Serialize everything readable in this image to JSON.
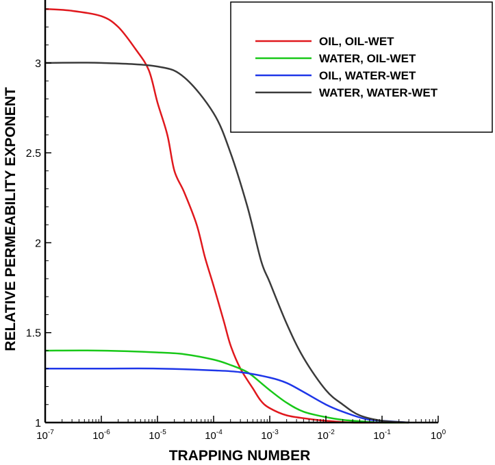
{
  "chart_data": {
    "type": "line",
    "title": "",
    "xlabel": "TRAPPING NUMBER",
    "ylabel": "RELATIVE PERMEABILITY EXPONENT",
    "x_scale": "log",
    "xlim": [
      1e-07,
      1
    ],
    "ylim": [
      1,
      3.35
    ],
    "x_ticks": [
      {
        "base": "10",
        "exp": "-7",
        "value": 1e-07
      },
      {
        "base": "10",
        "exp": "-6",
        "value": 1e-06
      },
      {
        "base": "10",
        "exp": "-5",
        "value": 1e-05
      },
      {
        "base": "10",
        "exp": "-4",
        "value": 0.0001
      },
      {
        "base": "10",
        "exp": "-3",
        "value": 0.001
      },
      {
        "base": "10",
        "exp": "-2",
        "value": 0.01
      },
      {
        "base": "10",
        "exp": "-1",
        "value": 0.1
      },
      {
        "base": "10",
        "exp": "0",
        "value": 1
      }
    ],
    "y_ticks": [
      {
        "label": "1",
        "value": 1
      },
      {
        "label": "1.5",
        "value": 1.5
      },
      {
        "label": "2",
        "value": 2
      },
      {
        "label": "2.5",
        "value": 2.5
      },
      {
        "label": "3",
        "value": 3
      }
    ],
    "grid": false,
    "legend_position": "top-right",
    "series": [
      {
        "name": "OIL, OIL-WET",
        "color": "#e0181d",
        "x": [
          1e-07,
          3e-07,
          1e-06,
          2e-06,
          4e-06,
          7e-06,
          1e-05,
          1.5e-05,
          2e-05,
          3e-05,
          5e-05,
          7e-05,
          0.0001,
          0.00015,
          0.0002,
          0.0003,
          0.0005,
          0.0007,
          0.001,
          0.002,
          0.005,
          0.01,
          0.03,
          0.1,
          0.3
        ],
        "y": [
          3.3,
          3.29,
          3.26,
          3.2,
          3.08,
          2.96,
          2.78,
          2.6,
          2.4,
          2.28,
          2.1,
          1.92,
          1.76,
          1.57,
          1.43,
          1.3,
          1.19,
          1.12,
          1.08,
          1.04,
          1.02,
          1.01,
          1.0,
          1.0,
          1.0
        ]
      },
      {
        "name": "WATER, OIL-WET",
        "color": "#18c818",
        "x": [
          1e-07,
          1e-06,
          1e-05,
          3e-05,
          0.0001,
          0.0002,
          0.0004,
          0.0007,
          0.001,
          0.002,
          0.004,
          0.01,
          0.02,
          0.05,
          0.1,
          0.3
        ],
        "y": [
          1.4,
          1.4,
          1.39,
          1.38,
          1.35,
          1.32,
          1.28,
          1.22,
          1.18,
          1.11,
          1.06,
          1.03,
          1.015,
          1.005,
          1.0,
          1.0
        ]
      },
      {
        "name": "OIL, WATER-WET",
        "color": "#1e36e8",
        "x": [
          1e-07,
          1e-06,
          1e-05,
          0.0001,
          0.0003,
          0.001,
          0.002,
          0.004,
          0.01,
          0.02,
          0.05,
          0.1,
          0.3
        ],
        "y": [
          1.3,
          1.3,
          1.3,
          1.29,
          1.28,
          1.25,
          1.22,
          1.17,
          1.1,
          1.06,
          1.02,
          1.01,
          1.0
        ]
      },
      {
        "name": "WATER, WATER-WET",
        "color": "#3a3a3a",
        "x": [
          1e-07,
          1e-06,
          1e-05,
          3e-05,
          0.0001,
          0.0002,
          0.0004,
          0.0007,
          0.001,
          0.002,
          0.004,
          0.01,
          0.02,
          0.04,
          0.1,
          0.3
        ],
        "y": [
          3.0,
          3.0,
          2.98,
          2.92,
          2.72,
          2.5,
          2.2,
          1.9,
          1.78,
          1.55,
          1.36,
          1.18,
          1.1,
          1.04,
          1.01,
          1.0
        ]
      }
    ]
  }
}
